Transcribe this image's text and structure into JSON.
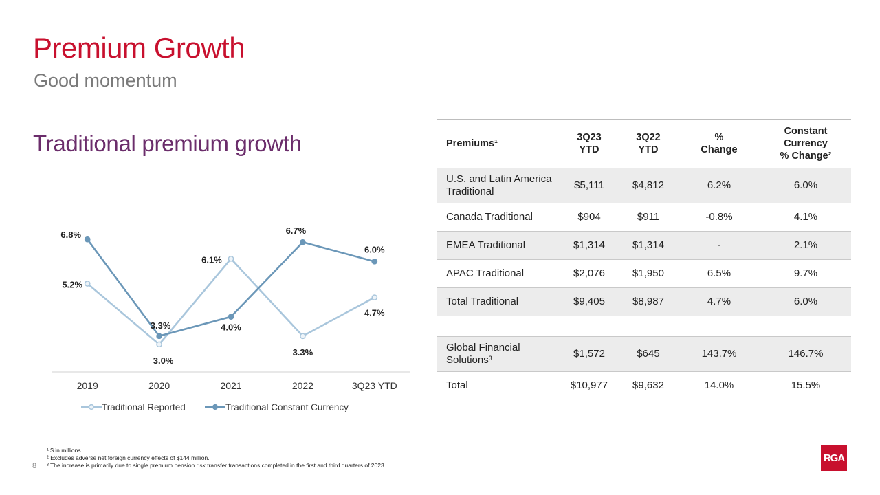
{
  "header": {
    "title": "Premium Growth",
    "subtitle": "Good momentum",
    "section_title": "Traditional premium growth"
  },
  "chart_data": {
    "type": "line",
    "title": "Traditional premium growth",
    "categories": [
      "2019",
      "2020",
      "2021",
      "2022",
      "3Q23 YTD"
    ],
    "series": [
      {
        "name": "Traditional Reported",
        "values": [
          5.2,
          3.0,
          6.1,
          3.3,
          4.7
        ],
        "labels": [
          "5.2%",
          "3.0%",
          "6.1%",
          "3.3%",
          "4.7%"
        ],
        "color": "#a9c6dc"
      },
      {
        "name": "Traditional Constant Currency",
        "values": [
          6.8,
          3.3,
          4.0,
          6.7,
          6.0
        ],
        "labels": [
          "6.8%",
          "3.3%",
          "4.0%",
          "6.7%",
          "6.0%"
        ],
        "color": "#6b97b8"
      }
    ],
    "ylim": [
      2.0,
      8.0
    ],
    "grid": false,
    "legend": "bottom"
  },
  "table": {
    "headers": {
      "premiums": "Premiums¹",
      "q23": [
        "3Q23",
        "YTD"
      ],
      "q22": [
        "3Q22",
        "YTD"
      ],
      "pct": [
        "%",
        "Change"
      ],
      "cc": [
        "Constant",
        "Currency",
        "% Change²"
      ]
    },
    "rows": [
      {
        "label": [
          "U.S. and Latin America",
          "Traditional"
        ],
        "q23": "$5,111",
        "q22": "$4,812",
        "pct": "6.2%",
        "cc": "6.0%"
      },
      {
        "label": [
          "Canada Traditional"
        ],
        "q23": "$904",
        "q22": "$911",
        "pct": "-0.8%",
        "cc": "4.1%"
      },
      {
        "label": [
          "EMEA Traditional"
        ],
        "q23": "$1,314",
        "q22": "$1,314",
        "pct": "-",
        "cc": "2.1%"
      },
      {
        "label": [
          "APAC Traditional"
        ],
        "q23": "$2,076",
        "q22": "$1,950",
        "pct": "6.5%",
        "cc": "9.7%"
      },
      {
        "label": [
          "Total Traditional"
        ],
        "q23": "$9,405",
        "q22": "$8,987",
        "pct": "4.7%",
        "cc": "6.0%"
      },
      {
        "label": [
          "Global Financial",
          "Solutions³"
        ],
        "q23": "$1,572",
        "q22": "$645",
        "pct": "143.7%",
        "cc": "146.7%"
      },
      {
        "label": [
          "Total"
        ],
        "q23": "$10,977",
        "q22": "$9,632",
        "pct": "14.0%",
        "cc": "15.5%"
      }
    ]
  },
  "footnotes": [
    "¹ $ in millions.",
    "² Excludes adverse net foreign currency effects of $144 million.",
    "³ The increase is primarily due to single premium pension risk transfer transactions completed in the first and third quarters of 2023."
  ],
  "page_number": "8",
  "logo_text": "RGA",
  "colors": {
    "title": "#c8102e",
    "section": "#6b2d6b",
    "reported": "#a9c6dc",
    "constant": "#6b97b8",
    "row_shade": "#ececec"
  }
}
